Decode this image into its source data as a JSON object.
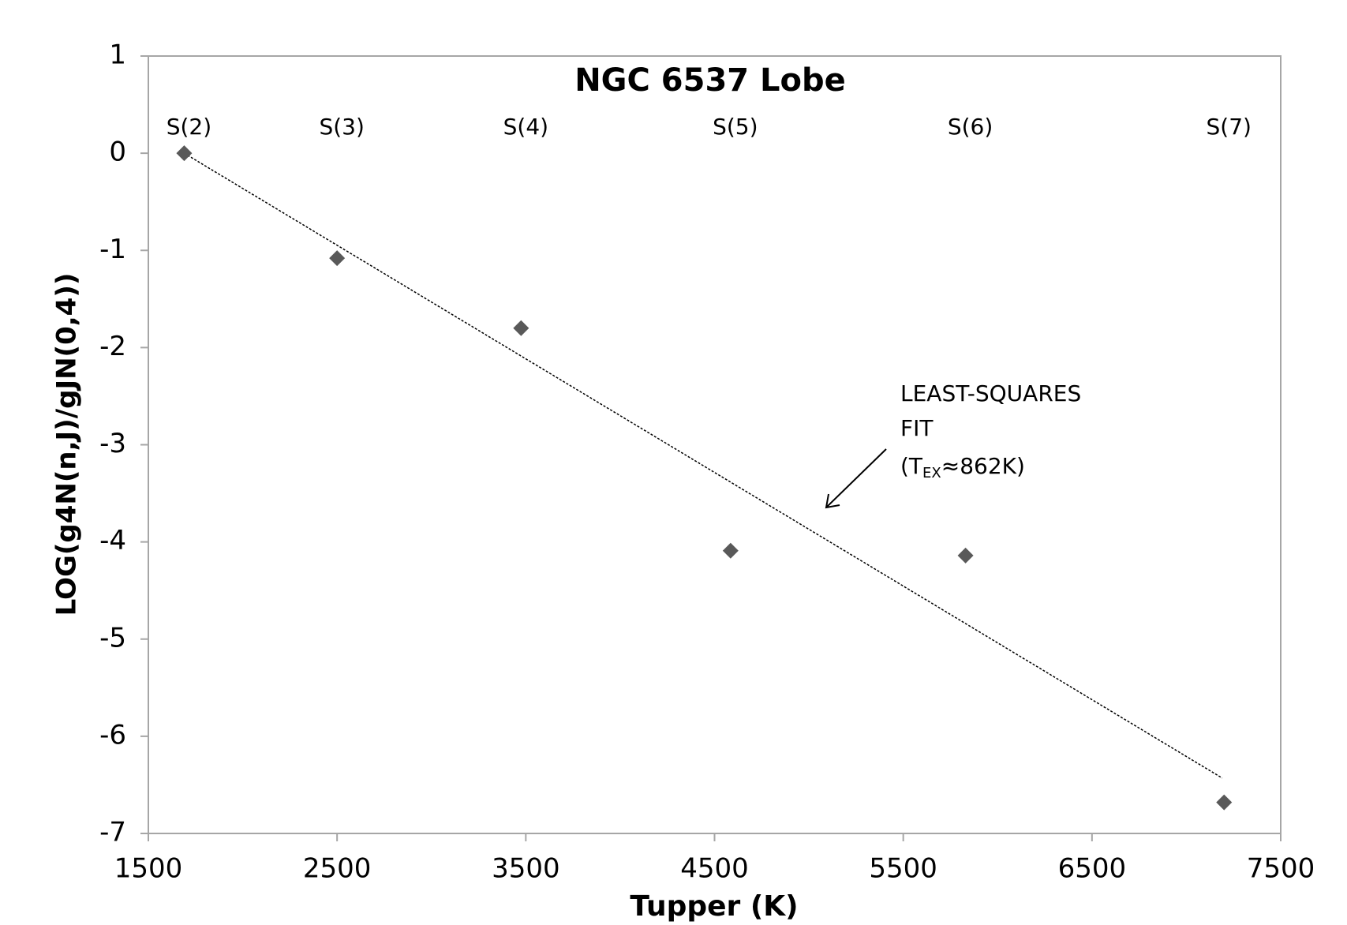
{
  "chart_data": {
    "type": "scatter",
    "title": "NGC 6537 Lobe",
    "x_label": "Tupper (K)",
    "y_label": "LOG(g4N(n,J)/gJN(0,4))",
    "series": [
      {
        "color": "#595959",
        "x": [
          1690,
          2500,
          3475,
          4585,
          5830,
          7200
        ],
        "values": [
          0,
          -1.08,
          -1.8,
          -4.09,
          -4.14,
          -6.68
        ],
        "point_labels": [
          "S(2)",
          "S(3)",
          "S(4)",
          "S(5)",
          "S(6)",
          "S(7)"
        ]
      }
    ],
    "fit": {
      "x": [
        1690,
        7190
      ],
      "values": [
        0,
        -6.43
      ],
      "color": "#000000"
    },
    "annotation": {
      "lines": [
        "LEAST-SQUARES",
        "FIT"
      ],
      "prefix": "(T",
      "subscript": "EX",
      "suffix": "≈862K)"
    },
    "xlim": [
      1500,
      7500
    ],
    "xticks": [
      1500,
      2500,
      3500,
      4500,
      5500,
      6500,
      7500
    ],
    "ylim": [
      -7,
      1
    ],
    "yticks": [
      -7,
      -6,
      -5,
      -4,
      -3,
      -2,
      -1,
      0,
      1
    ],
    "grid": false
  }
}
